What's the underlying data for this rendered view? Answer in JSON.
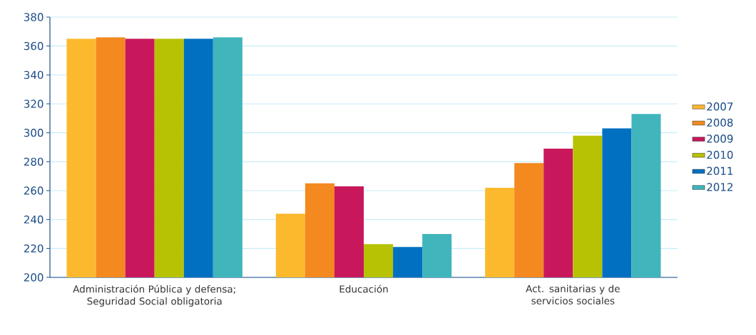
{
  "chart_data": {
    "type": "bar",
    "categories": [
      "Administración Pública y defensa; Seguridad Social obligatoria",
      "Educación",
      "Act. sanitarias y de servicios sociales"
    ],
    "series": [
      {
        "name": "2007",
        "color": "#fdb92e",
        "values": [
          365,
          244,
          262
        ]
      },
      {
        "name": "2008",
        "color": "#f3891f",
        "values": [
          366,
          265,
          279
        ]
      },
      {
        "name": "2009",
        "color": "#c8185b",
        "values": [
          365,
          263,
          289
        ]
      },
      {
        "name": "2010",
        "color": "#b7c204",
        "values": [
          365,
          223,
          298
        ]
      },
      {
        "name": "2011",
        "color": "#0270c1",
        "values": [
          365,
          221,
          303
        ]
      },
      {
        "name": "2012",
        "color": "#40b5bc",
        "values": [
          366,
          230,
          313
        ]
      }
    ],
    "ylim": [
      200,
      380
    ],
    "yticks": [
      200,
      220,
      240,
      260,
      280,
      300,
      320,
      340,
      360,
      380
    ],
    "grid": "y",
    "legend": "right"
  }
}
